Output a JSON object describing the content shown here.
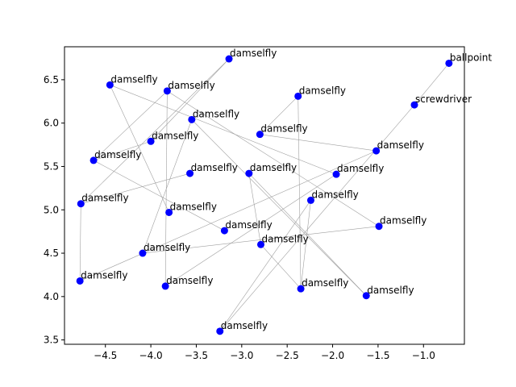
{
  "chart_data": {
    "type": "scatter",
    "title": "",
    "xlabel": "",
    "ylabel": "",
    "xlim": [
      -4.95,
      -0.55
    ],
    "ylim": [
      3.45,
      6.88
    ],
    "xticks": [
      -4.5,
      -4.0,
      -3.5,
      -3.0,
      -2.5,
      -2.0,
      -1.5,
      -1.0
    ],
    "xtick_labels": [
      "−4.5",
      "−4.0",
      "−3.5",
      "−3.0",
      "−2.5",
      "−2.0",
      "−1.5",
      "−1.0"
    ],
    "yticks": [
      3.5,
      4.0,
      4.5,
      5.0,
      5.5,
      6.0,
      6.5
    ],
    "ytick_labels": [
      "3.5",
      "4.0",
      "4.5",
      "5.0",
      "5.5",
      "6.0",
      "6.5"
    ],
    "point_color": "#0000ff",
    "edge_color": "#a0a0a0",
    "points": [
      {
        "x": -3.14,
        "y": 6.74,
        "label": "damselfly"
      },
      {
        "x": -0.72,
        "y": 6.69,
        "label": "ballpoint"
      },
      {
        "x": -4.45,
        "y": 6.44,
        "label": "damselfly"
      },
      {
        "x": -3.82,
        "y": 6.37,
        "label": "damselfly"
      },
      {
        "x": -2.38,
        "y": 6.31,
        "label": "damselfly"
      },
      {
        "x": -1.1,
        "y": 6.21,
        "label": "screwdriver"
      },
      {
        "x": -3.55,
        "y": 6.04,
        "label": "damselfly"
      },
      {
        "x": -2.8,
        "y": 5.87,
        "label": "damselfly"
      },
      {
        "x": -4.0,
        "y": 5.79,
        "label": "damselfly"
      },
      {
        "x": -1.52,
        "y": 5.68,
        "label": "damselfly"
      },
      {
        "x": -4.63,
        "y": 5.57,
        "label": "damselfly"
      },
      {
        "x": -3.57,
        "y": 5.42,
        "label": "damselfly"
      },
      {
        "x": -2.92,
        "y": 5.42,
        "label": "damselfly"
      },
      {
        "x": -1.96,
        "y": 5.41,
        "label": "damselfly"
      },
      {
        "x": -2.24,
        "y": 5.11,
        "label": "damselfly"
      },
      {
        "x": -4.77,
        "y": 5.07,
        "label": "damselfly"
      },
      {
        "x": -3.8,
        "y": 4.97,
        "label": "damselfly"
      },
      {
        "x": -1.49,
        "y": 4.81,
        "label": "damselfly"
      },
      {
        "x": -3.19,
        "y": 4.76,
        "label": "damselfly"
      },
      {
        "x": -2.79,
        "y": 4.6,
        "label": "damselfly"
      },
      {
        "x": -4.09,
        "y": 4.5,
        "label": "damselfly"
      },
      {
        "x": -4.78,
        "y": 4.18,
        "label": "damselfly"
      },
      {
        "x": -3.84,
        "y": 4.12,
        "label": "damselfly"
      },
      {
        "x": -2.35,
        "y": 4.09,
        "label": "damselfly"
      },
      {
        "x": -1.63,
        "y": 4.01,
        "label": "damselfly"
      },
      {
        "x": -3.24,
        "y": 3.6,
        "label": "damselfly"
      }
    ],
    "edges": [
      [
        0,
        8
      ],
      [
        0,
        15
      ],
      [
        1,
        5
      ],
      [
        2,
        16
      ],
      [
        2,
        13
      ],
      [
        3,
        22
      ],
      [
        3,
        10
      ],
      [
        4,
        7
      ],
      [
        4,
        23
      ],
      [
        5,
        25
      ],
      [
        6,
        20
      ],
      [
        6,
        24
      ],
      [
        7,
        9
      ],
      [
        8,
        10
      ],
      [
        9,
        21
      ],
      [
        10,
        18
      ],
      [
        11,
        15
      ],
      [
        12,
        19
      ],
      [
        12,
        24
      ],
      [
        13,
        22
      ],
      [
        14,
        23
      ],
      [
        17,
        20
      ],
      [
        3,
        17
      ],
      [
        19,
        23
      ],
      [
        21,
        15
      ],
      [
        14,
        25
      ]
    ]
  }
}
